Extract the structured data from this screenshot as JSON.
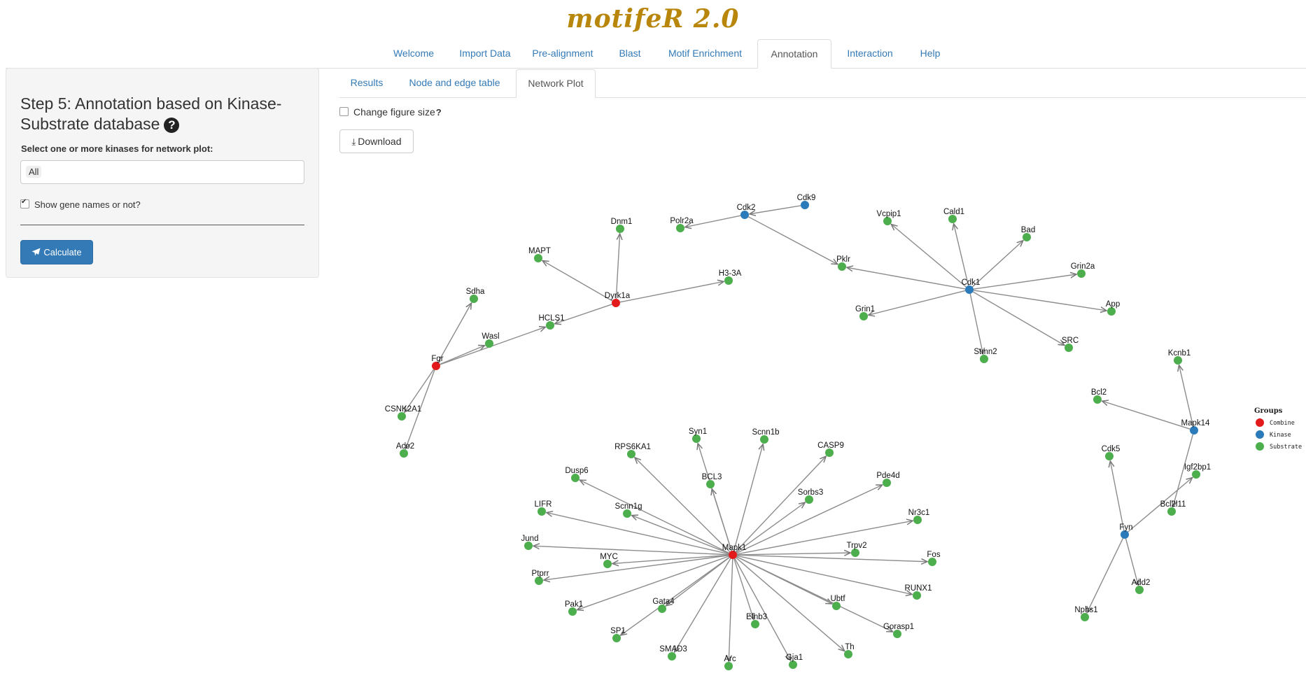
{
  "app": {
    "title": "motifeR 2.0"
  },
  "main_tabs": [
    {
      "label": "Welcome",
      "active": false
    },
    {
      "label": "Import Data",
      "active": false
    },
    {
      "label": "Pre-alignment",
      "active": false
    },
    {
      "label": "Blast",
      "active": false
    },
    {
      "label": "Motif Enrichment",
      "active": false
    },
    {
      "label": "Annotation",
      "active": true
    },
    {
      "label": "Interaction",
      "active": false
    },
    {
      "label": "Help",
      "active": false
    }
  ],
  "sidebar": {
    "title": "Step 5: Annotation based on Kinase-Substrate database",
    "help_icon": "question-circle-icon",
    "select_label": "Select one or more kinases for network plot:",
    "selected_kinase": "All",
    "show_gene_names_label": "Show gene names or not?",
    "show_gene_names_checked": true,
    "calculate_label": "Calculate",
    "calculate_icon": "paper-plane-icon",
    "button_color": "#337ab7"
  },
  "sub_tabs": [
    {
      "label": "Results",
      "active": false
    },
    {
      "label": "Node and edge table",
      "active": false
    },
    {
      "label": "Network Plot",
      "active": true
    }
  ],
  "plot_controls": {
    "change_size_label": "Change figure size",
    "change_size_hint": "?",
    "change_size_checked": false,
    "download_label": "Download",
    "download_icon": "download-icon"
  },
  "network": {
    "legend": {
      "title": "Groups",
      "items": [
        {
          "label": "Combine",
          "color": "#e31a1c"
        },
        {
          "label": "Kinase",
          "color": "#2b7bba"
        },
        {
          "label": "Substrate",
          "color": "#4cae4c"
        }
      ]
    },
    "nodes": [
      {
        "id": "Dnm1",
        "group": "Substrate"
      },
      {
        "id": "Polr2a",
        "group": "Substrate"
      },
      {
        "id": "Cdk2",
        "group": "Kinase"
      },
      {
        "id": "Cdk9",
        "group": "Kinase"
      },
      {
        "id": "MAPT",
        "group": "Substrate"
      },
      {
        "id": "Pklr",
        "group": "Substrate"
      },
      {
        "id": "H3-3A",
        "group": "Substrate"
      },
      {
        "id": "Dyrk1a",
        "group": "Combine"
      },
      {
        "id": "Sdha",
        "group": "Substrate"
      },
      {
        "id": "HCLS1",
        "group": "Substrate"
      },
      {
        "id": "Wasl",
        "group": "Substrate"
      },
      {
        "id": "Fgr",
        "group": "Combine"
      },
      {
        "id": "CSNK2A1",
        "group": "Substrate"
      },
      {
        "id": "Aco2",
        "group": "Substrate"
      },
      {
        "id": "Vcpip1",
        "group": "Substrate"
      },
      {
        "id": "Cald1",
        "group": "Substrate"
      },
      {
        "id": "Bad",
        "group": "Substrate"
      },
      {
        "id": "Grin2a",
        "group": "Substrate"
      },
      {
        "id": "Cdk1",
        "group": "Kinase"
      },
      {
        "id": "App",
        "group": "Substrate"
      },
      {
        "id": "Grin1",
        "group": "Substrate"
      },
      {
        "id": "SRC",
        "group": "Substrate"
      },
      {
        "id": "Stmn2",
        "group": "Substrate"
      },
      {
        "id": "Kcnb1",
        "group": "Substrate"
      },
      {
        "id": "Bcl2",
        "group": "Substrate"
      },
      {
        "id": "Mapk14",
        "group": "Kinase"
      },
      {
        "id": "Cdk5",
        "group": "Substrate"
      },
      {
        "id": "Igf2bp1",
        "group": "Substrate"
      },
      {
        "id": "Bcl2l11",
        "group": "Substrate"
      },
      {
        "id": "Fyn",
        "group": "Kinase"
      },
      {
        "id": "Add2",
        "group": "Substrate"
      },
      {
        "id": "Nphs1",
        "group": "Substrate"
      },
      {
        "id": "Syn1",
        "group": "Substrate"
      },
      {
        "id": "Scnn1b",
        "group": "Substrate"
      },
      {
        "id": "RPS6KA1",
        "group": "Substrate"
      },
      {
        "id": "CASP9",
        "group": "Substrate"
      },
      {
        "id": "BCL3",
        "group": "Substrate"
      },
      {
        "id": "Dusp6",
        "group": "Substrate"
      },
      {
        "id": "Pde4d",
        "group": "Substrate"
      },
      {
        "id": "Sorbs3",
        "group": "Substrate"
      },
      {
        "id": "LIFR",
        "group": "Substrate"
      },
      {
        "id": "Scnn1g",
        "group": "Substrate"
      },
      {
        "id": "Nr3c1",
        "group": "Substrate"
      },
      {
        "id": "Jund",
        "group": "Substrate"
      },
      {
        "id": "Mapk1",
        "group": "Combine"
      },
      {
        "id": "Trpv2",
        "group": "Substrate"
      },
      {
        "id": "MYC",
        "group": "Substrate"
      },
      {
        "id": "Fos",
        "group": "Substrate"
      },
      {
        "id": "Ptprr",
        "group": "Substrate"
      },
      {
        "id": "RUNX1",
        "group": "Substrate"
      },
      {
        "id": "Pak1",
        "group": "Substrate"
      },
      {
        "id": "Gata4",
        "group": "Substrate"
      },
      {
        "id": "Ubtf",
        "group": "Substrate"
      },
      {
        "id": "Efnb3",
        "group": "Substrate"
      },
      {
        "id": "Gorasp1",
        "group": "Substrate"
      },
      {
        "id": "SP1",
        "group": "Substrate"
      },
      {
        "id": "Th",
        "group": "Substrate"
      },
      {
        "id": "SMAD3",
        "group": "Substrate"
      },
      {
        "id": "Gja1",
        "group": "Substrate"
      },
      {
        "id": "Arc",
        "group": "Substrate"
      }
    ],
    "edges": [
      [
        "Dyrk1a",
        "Dnm1"
      ],
      [
        "Dyrk1a",
        "MAPT"
      ],
      [
        "Dyrk1a",
        "H3-3A"
      ],
      [
        "Dyrk1a",
        "HCLS1"
      ],
      [
        "Fgr",
        "Sdha"
      ],
      [
        "Fgr",
        "Wasl"
      ],
      [
        "Fgr",
        "HCLS1"
      ],
      [
        "Fgr",
        "CSNK2A1"
      ],
      [
        "Fgr",
        "Aco2"
      ],
      [
        "Cdk2",
        "Polr2a"
      ],
      [
        "Cdk2",
        "Pklr"
      ],
      [
        "Cdk9",
        "Cdk2"
      ],
      [
        "Cdk1",
        "Pklr"
      ],
      [
        "Cdk1",
        "Vcpip1"
      ],
      [
        "Cdk1",
        "Cald1"
      ],
      [
        "Cdk1",
        "Bad"
      ],
      [
        "Cdk1",
        "Grin2a"
      ],
      [
        "Cdk1",
        "App"
      ],
      [
        "Cdk1",
        "Grin1"
      ],
      [
        "Cdk1",
        "SRC"
      ],
      [
        "Cdk1",
        "Stmn2"
      ],
      [
        "Mapk14",
        "Kcnb1"
      ],
      [
        "Mapk14",
        "Bcl2"
      ],
      [
        "Mapk14",
        "Bcl2l11"
      ],
      [
        "Fyn",
        "Igf2bp1"
      ],
      [
        "Fyn",
        "Cdk5"
      ],
      [
        "Fyn",
        "Add2"
      ],
      [
        "Fyn",
        "Nphs1"
      ],
      [
        "Mapk1",
        "Syn1"
      ],
      [
        "Mapk1",
        "Scnn1b"
      ],
      [
        "Mapk1",
        "RPS6KA1"
      ],
      [
        "Mapk1",
        "CASP9"
      ],
      [
        "Mapk1",
        "BCL3"
      ],
      [
        "Mapk1",
        "Dusp6"
      ],
      [
        "Mapk1",
        "Pde4d"
      ],
      [
        "Mapk1",
        "Sorbs3"
      ],
      [
        "Mapk1",
        "LIFR"
      ],
      [
        "Mapk1",
        "Scnn1g"
      ],
      [
        "Mapk1",
        "Nr3c1"
      ],
      [
        "Mapk1",
        "Jund"
      ],
      [
        "Mapk1",
        "Trpv2"
      ],
      [
        "Mapk1",
        "MYC"
      ],
      [
        "Mapk1",
        "Fos"
      ],
      [
        "Mapk1",
        "Ptprr"
      ],
      [
        "Mapk1",
        "RUNX1"
      ],
      [
        "Mapk1",
        "Pak1"
      ],
      [
        "Mapk1",
        "Gata4"
      ],
      [
        "Mapk1",
        "Ubtf"
      ],
      [
        "Mapk1",
        "Efnb3"
      ],
      [
        "Mapk1",
        "Gorasp1"
      ],
      [
        "Mapk1",
        "SP1"
      ],
      [
        "Mapk1",
        "Th"
      ],
      [
        "Mapk1",
        "SMAD3"
      ],
      [
        "Mapk1",
        "Gja1"
      ],
      [
        "Mapk1",
        "Arc"
      ]
    ]
  }
}
